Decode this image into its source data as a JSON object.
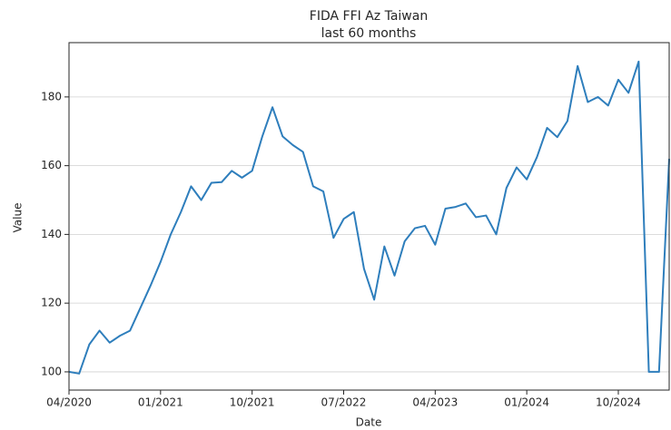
{
  "chart_data": {
    "type": "line",
    "title": "FIDA FFI Az Taiwan",
    "subtitle": "last 60 months",
    "x_label": "Date",
    "y_label": "Value",
    "x": [
      "04/2020",
      "05/2020",
      "06/2020",
      "07/2020",
      "08/2020",
      "09/2020",
      "10/2020",
      "11/2020",
      "12/2020",
      "01/2021",
      "02/2021",
      "03/2021",
      "04/2021",
      "05/2021",
      "06/2021",
      "07/2021",
      "08/2021",
      "09/2021",
      "10/2021",
      "11/2021",
      "12/2021",
      "01/2022",
      "02/2022",
      "03/2022",
      "04/2022",
      "05/2022",
      "06/2022",
      "07/2022",
      "08/2022",
      "09/2022",
      "10/2022",
      "11/2022",
      "12/2022",
      "01/2023",
      "02/2023",
      "03/2023",
      "04/2023",
      "05/2023",
      "06/2023",
      "07/2023",
      "08/2023",
      "09/2023",
      "10/2023",
      "11/2023",
      "12/2023",
      "01/2024",
      "02/2024",
      "03/2024",
      "04/2024",
      "05/2024",
      "06/2024",
      "07/2024",
      "08/2024",
      "09/2024",
      "10/2024",
      "11/2024",
      "12/2024",
      "01/2025",
      "02/2025",
      "03/2025"
    ],
    "values": [
      100,
      99.5,
      108,
      112,
      108.5,
      110.5,
      112,
      118.5,
      125,
      132,
      140,
      146.5,
      154,
      150,
      155,
      155.2,
      158.5,
      156.5,
      158.5,
      168.5,
      177,
      168.5,
      166,
      164,
      154,
      152.5,
      139,
      144.5,
      146.5,
      130,
      121,
      136.5,
      128,
      138,
      141.8,
      142.5,
      137,
      147.5,
      148,
      149,
      145,
      145.5,
      140,
      153.5,
      159.5,
      156,
      162.5,
      171,
      168.3,
      173,
      189,
      178.5,
      180,
      177.5,
      185,
      181.2,
      190.3,
      100,
      100,
      162
    ],
    "color": "#2e7ebc",
    "xticks": [
      "04/2020",
      "01/2021",
      "10/2021",
      "07/2022",
      "04/2023",
      "01/2024",
      "10/2024"
    ],
    "ylim": [
      94.7,
      195.8
    ],
    "yticks": [
      100,
      120,
      140,
      160,
      180
    ],
    "grid": true
  }
}
